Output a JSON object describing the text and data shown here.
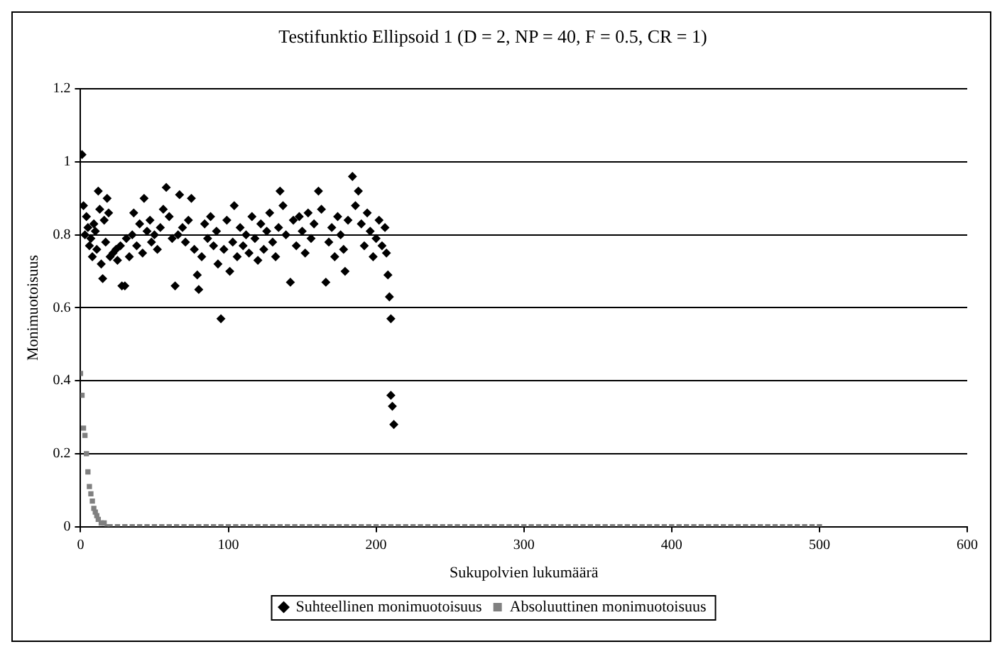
{
  "chart_data": {
    "type": "scatter",
    "title": "Testifunktio Ellipsoid 1 (D = 2, NP = 40, F = 0.5, CR = 1)",
    "xlabel": "Sukupolvien lukumäärä",
    "ylabel": "Monimuotoisuus",
    "xlim": [
      0,
      600
    ],
    "xticks": [
      0,
      100,
      200,
      300,
      400,
      500,
      600
    ],
    "ylim": [
      0,
      1.2
    ],
    "yticks": [
      0,
      0.2,
      0.4,
      0.6,
      0.8,
      1,
      1.2
    ],
    "grid": "y",
    "legend": "bottom",
    "series": [
      {
        "name": "Suhteellinen monimuotoisuus",
        "color": "#000000",
        "marker": "diamond",
        "x": [
          1,
          2,
          3,
          4,
          5,
          6,
          7,
          8,
          9,
          10,
          11,
          12,
          13,
          14,
          15,
          16,
          17,
          18,
          19,
          20,
          22,
          24,
          25,
          27,
          28,
          30,
          31,
          33,
          35,
          36,
          38,
          40,
          42,
          43,
          45,
          47,
          48,
          50,
          52,
          54,
          56,
          58,
          60,
          62,
          64,
          66,
          67,
          69,
          71,
          73,
          75,
          77,
          79,
          80,
          82,
          84,
          86,
          88,
          90,
          92,
          93,
          95,
          97,
          99,
          101,
          103,
          104,
          106,
          108,
          110,
          112,
          114,
          116,
          118,
          120,
          122,
          124,
          126,
          128,
          130,
          132,
          134,
          135,
          137,
          139,
          142,
          144,
          146,
          148,
          150,
          152,
          154,
          156,
          158,
          161,
          163,
          166,
          168,
          170,
          172,
          174,
          176,
          178,
          179,
          181,
          184,
          186,
          188,
          190,
          192,
          194,
          196,
          198,
          200,
          202,
          204,
          206,
          207,
          208,
          209,
          210,
          210,
          211,
          212
        ],
        "values": [
          1.02,
          0.88,
          0.8,
          0.85,
          0.82,
          0.77,
          0.79,
          0.74,
          0.83,
          0.81,
          0.76,
          0.92,
          0.87,
          0.72,
          0.68,
          0.84,
          0.78,
          0.9,
          0.86,
          0.74,
          0.75,
          0.76,
          0.73,
          0.77,
          0.66,
          0.66,
          0.79,
          0.74,
          0.8,
          0.86,
          0.77,
          0.83,
          0.75,
          0.9,
          0.81,
          0.84,
          0.78,
          0.8,
          0.76,
          0.82,
          0.87,
          0.93,
          0.85,
          0.79,
          0.66,
          0.8,
          0.91,
          0.82,
          0.78,
          0.84,
          0.9,
          0.76,
          0.69,
          0.65,
          0.74,
          0.83,
          0.79,
          0.85,
          0.77,
          0.81,
          0.72,
          0.57,
          0.76,
          0.84,
          0.7,
          0.78,
          0.88,
          0.74,
          0.82,
          0.77,
          0.8,
          0.75,
          0.85,
          0.79,
          0.73,
          0.83,
          0.76,
          0.81,
          0.86,
          0.78,
          0.74,
          0.82,
          0.92,
          0.88,
          0.8,
          0.67,
          0.84,
          0.77,
          0.85,
          0.81,
          0.75,
          0.86,
          0.79,
          0.83,
          0.92,
          0.87,
          0.67,
          0.78,
          0.82,
          0.74,
          0.85,
          0.8,
          0.76,
          0.7,
          0.84,
          0.96,
          0.88,
          0.92,
          0.83,
          0.77,
          0.86,
          0.81,
          0.74,
          0.79,
          0.84,
          0.77,
          0.82,
          0.75,
          0.69,
          0.63,
          0.57,
          0.36,
          0.33,
          0.28
        ]
      },
      {
        "name": "Absoluuttinen monimuotoisuus",
        "color": "#808080",
        "marker": "square",
        "x": [
          0,
          1,
          2,
          3,
          4,
          5,
          6,
          7,
          8,
          9,
          10,
          11,
          12,
          14,
          16,
          18,
          20,
          25,
          30,
          35,
          40,
          45,
          50,
          55,
          60,
          65,
          70,
          75,
          80,
          85,
          90,
          95,
          100,
          105,
          110,
          115,
          120,
          125,
          130,
          135,
          140,
          145,
          150,
          155,
          160,
          165,
          170,
          175,
          180,
          185,
          190,
          195,
          200,
          205,
          210,
          215,
          220,
          225,
          230,
          235,
          240,
          245,
          250,
          255,
          260,
          265,
          270,
          275,
          280,
          285,
          290,
          295,
          300,
          305,
          310,
          315,
          320,
          325,
          330,
          335,
          340,
          345,
          350,
          355,
          360,
          365,
          370,
          375,
          380,
          385,
          390,
          395,
          400,
          405,
          410,
          415,
          420,
          425,
          430,
          435,
          440,
          445,
          450,
          455,
          460,
          465,
          470,
          475,
          480,
          485,
          490,
          495,
          500
        ],
        "values": [
          0.42,
          0.36,
          0.27,
          0.25,
          0.2,
          0.15,
          0.11,
          0.09,
          0.07,
          0.05,
          0.04,
          0.03,
          0.02,
          0.01,
          0.01,
          0,
          0,
          0,
          0,
          0,
          0,
          0,
          0,
          0,
          0,
          0,
          0,
          0,
          0,
          0,
          0,
          0,
          0,
          0,
          0,
          0,
          0,
          0,
          0,
          0,
          0,
          0,
          0,
          0,
          0,
          0,
          0,
          0,
          0,
          0,
          0,
          0,
          0,
          0,
          0,
          0,
          0,
          0,
          0,
          0,
          0,
          0,
          0,
          0,
          0,
          0,
          0,
          0,
          0,
          0,
          0,
          0,
          0,
          0,
          0,
          0,
          0,
          0,
          0,
          0,
          0,
          0,
          0,
          0,
          0,
          0,
          0,
          0,
          0,
          0,
          0,
          0,
          0,
          0,
          0,
          0,
          0,
          0,
          0,
          0,
          0,
          0,
          0,
          0,
          0,
          0,
          0,
          0,
          0,
          0,
          0,
          0,
          0
        ]
      }
    ]
  }
}
